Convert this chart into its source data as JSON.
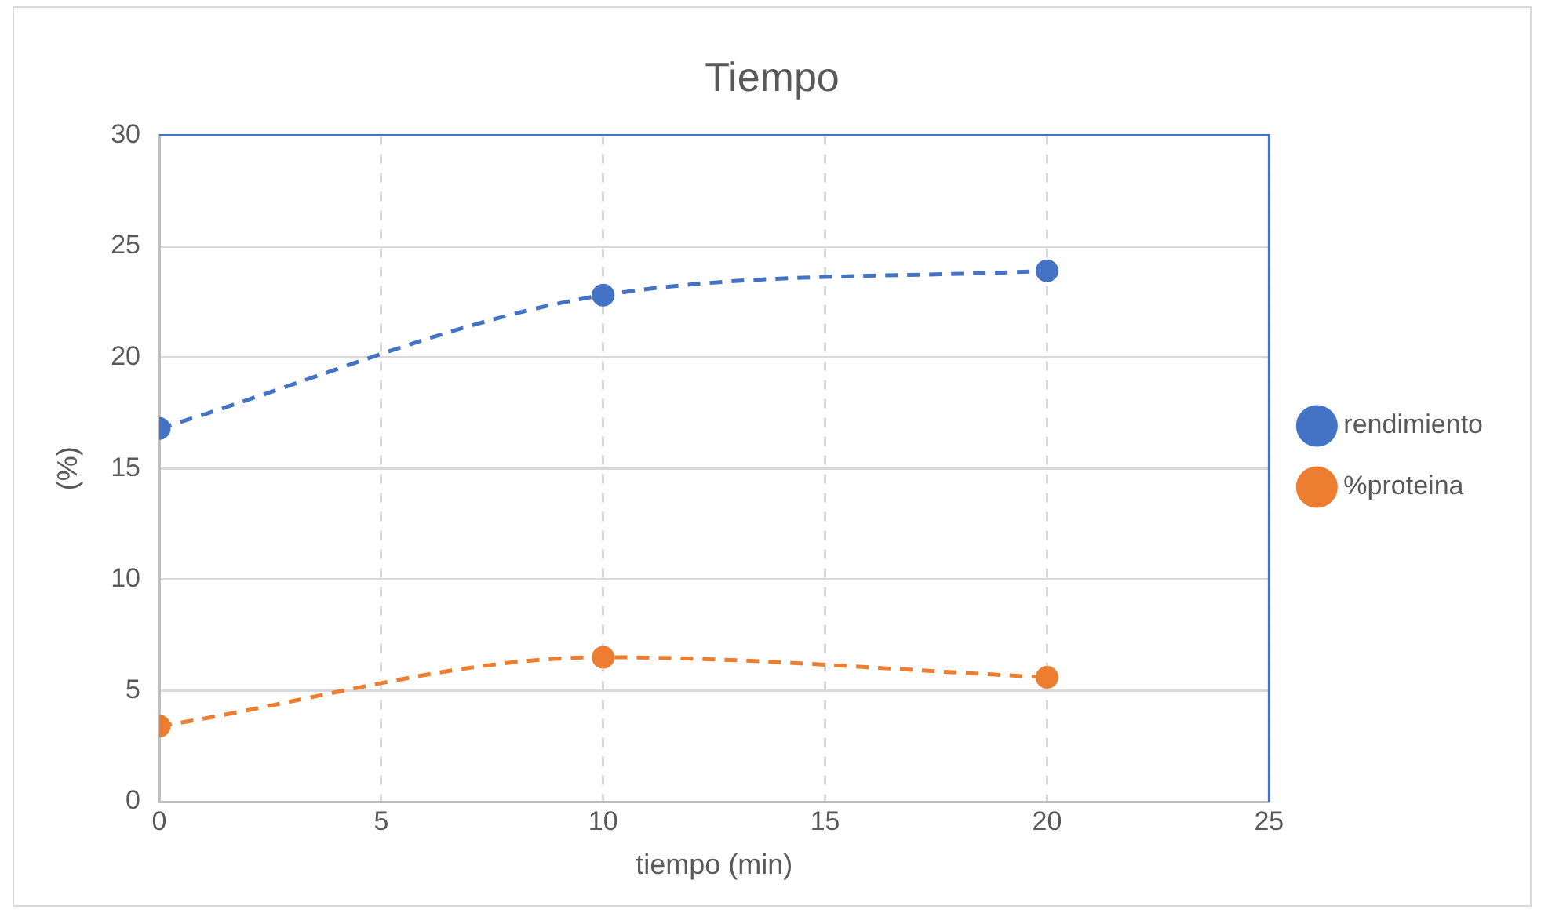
{
  "chart_data": {
    "type": "line",
    "title": "Tiempo",
    "xlabel": "tiempo (min)",
    "ylabel": "(%)",
    "x": [
      0,
      10,
      20
    ],
    "series": [
      {
        "name": "rendimiento",
        "color": "#4472c4",
        "values": [
          16.8,
          22.8,
          23.9
        ]
      },
      {
        "name": "%proteina",
        "color": "#ed7d31",
        "values": [
          3.4,
          6.5,
          5.6
        ]
      }
    ],
    "xlim": [
      0,
      25
    ],
    "xticks": [
      0,
      5,
      10,
      15,
      20,
      25
    ],
    "ylim": [
      0,
      30
    ],
    "yticks": [
      0,
      5,
      10,
      15,
      20,
      25,
      30
    ],
    "grid": true,
    "legend": "right",
    "marker": "circle",
    "line_style": "dashed"
  }
}
